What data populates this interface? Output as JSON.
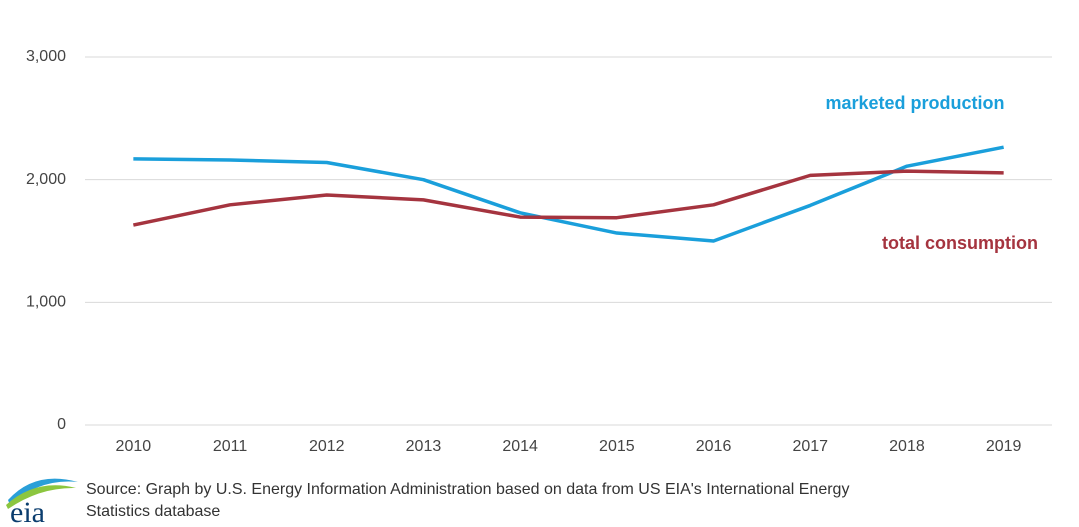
{
  "chart_data": {
    "type": "line",
    "categories": [
      "2010",
      "2011",
      "2012",
      "2013",
      "2014",
      "2015",
      "2016",
      "2017",
      "2018",
      "2019"
    ],
    "series": [
      {
        "name": "marketed production",
        "color": "#1a9fdb",
        "values": [
          2170,
          2160,
          2140,
          2000,
          1730,
          1565,
          1500,
          1790,
          2110,
          2265
        ]
      },
      {
        "name": "total consumption",
        "color": "#a5343f",
        "values": [
          1630,
          1795,
          1875,
          1835,
          1695,
          1690,
          1795,
          2035,
          2070,
          2055
        ]
      }
    ],
    "ylim": [
      0,
      3000
    ],
    "yticks": [
      0,
      {
        "value": 1000,
        "label": "1,000"
      },
      {
        "value": 2000,
        "label": "2,000"
      },
      {
        "value": 3000,
        "label": "3,000"
      }
    ],
    "grid": true,
    "source": "Source: Graph by U.S. Energy Information Administration based on data from US EIA's International Energy",
    "source_line2": "Statistics database",
    "logo": "eia"
  }
}
